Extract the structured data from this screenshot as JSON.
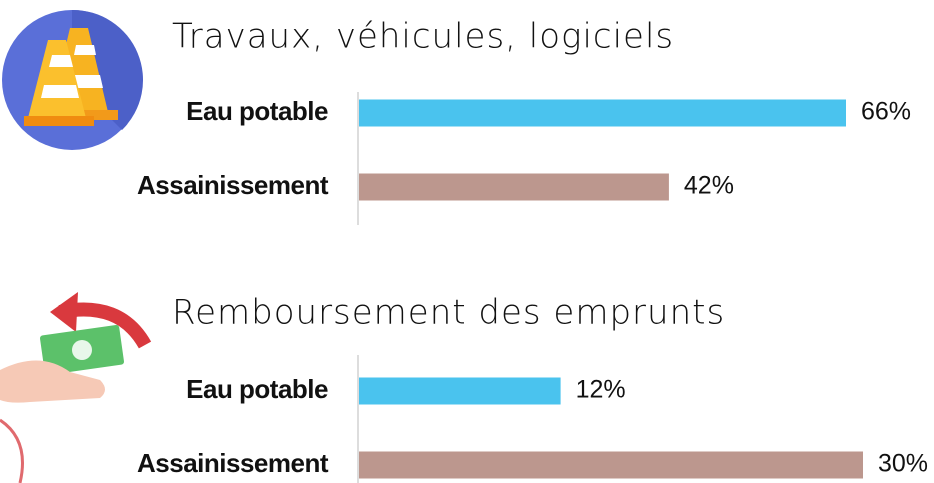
{
  "chart_data": [
    {
      "type": "hbar",
      "title": "Travaux, véhicules, logiciels",
      "categories": [
        "Eau potable",
        "Assainissement"
      ],
      "values": [
        66,
        42
      ],
      "value_labels": [
        "66%",
        "42%"
      ],
      "colors": [
        "#4ac3ee",
        "#bc978e"
      ]
    },
    {
      "type": "hbar",
      "title": "Remboursement des emprunts",
      "categories": [
        "Eau potable",
        "Assainissement"
      ],
      "values": [
        12,
        30
      ],
      "value_labels": [
        "12%",
        "30%"
      ],
      "colors": [
        "#4ac3ee",
        "#bc978e"
      ]
    }
  ]
}
